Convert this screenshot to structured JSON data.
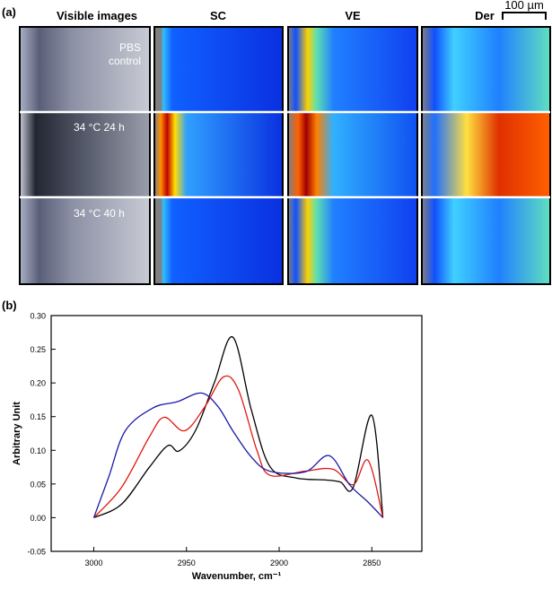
{
  "panel_a": {
    "label": "(a)",
    "headers": [
      "Visible images",
      "SC",
      "VE",
      "Der"
    ],
    "scale_bar": "100 µm",
    "row_labels": [
      "PBS\ncontrol",
      "34 °C 24 h",
      "34 °C 40 h"
    ]
  },
  "chart_data": {
    "type": "line",
    "panel_label": "(b)",
    "xlabel": "Wavenumber, cm⁻¹",
    "ylabel": "Arbitrary Unit",
    "xlim": [
      3023,
      2823
    ],
    "xticks": [
      3000,
      2950,
      2900,
      2850
    ],
    "ylim": [
      -0.05,
      0.3
    ],
    "yticks": [
      {
        "value": -0.05,
        "label": "-0.05"
      },
      {
        "value": 0,
        "label": "0.00"
      },
      {
        "value": 0.05,
        "label": "0.05"
      },
      {
        "value": 0.1,
        "label": "0.10"
      },
      {
        "value": 0.15,
        "label": "0.15"
      },
      {
        "value": 0.2,
        "label": "0.20"
      },
      {
        "value": 0.25,
        "label": "0.25"
      },
      {
        "value": 0.3,
        "label": "0.30"
      }
    ],
    "series": [
      {
        "color": "#000000",
        "x": [
          3000,
          2985,
          2970,
          2960,
          2954,
          2945,
          2935,
          2925,
          2915,
          2905,
          2891,
          2875,
          2867,
          2860,
          2850,
          2844
        ],
        "values": [
          0,
          0.02,
          0.075,
          0.107,
          0.099,
          0.13,
          0.2,
          0.268,
          0.16,
          0.076,
          0.059,
          0.056,
          0.053,
          0.045,
          0.152,
          0
        ]
      },
      {
        "color": "#e0190f",
        "x": [
          3000,
          2985,
          2970,
          2962,
          2951,
          2940,
          2930,
          2922,
          2912,
          2905,
          2886,
          2871,
          2860,
          2852,
          2844
        ],
        "values": [
          0,
          0.045,
          0.12,
          0.149,
          0.129,
          0.165,
          0.209,
          0.19,
          0.1,
          0.063,
          0.069,
          0.072,
          0.049,
          0.085,
          0
        ]
      },
      {
        "color": "#1a1aa8",
        "x": [
          3000,
          2992,
          2983,
          2968,
          2955,
          2942,
          2933,
          2925,
          2915,
          2905,
          2886,
          2873,
          2862,
          2852,
          2844
        ],
        "values": [
          0,
          0.06,
          0.129,
          0.163,
          0.172,
          0.185,
          0.165,
          0.129,
          0.09,
          0.069,
          0.068,
          0.092,
          0.049,
          0.023,
          0
        ]
      }
    ]
  }
}
